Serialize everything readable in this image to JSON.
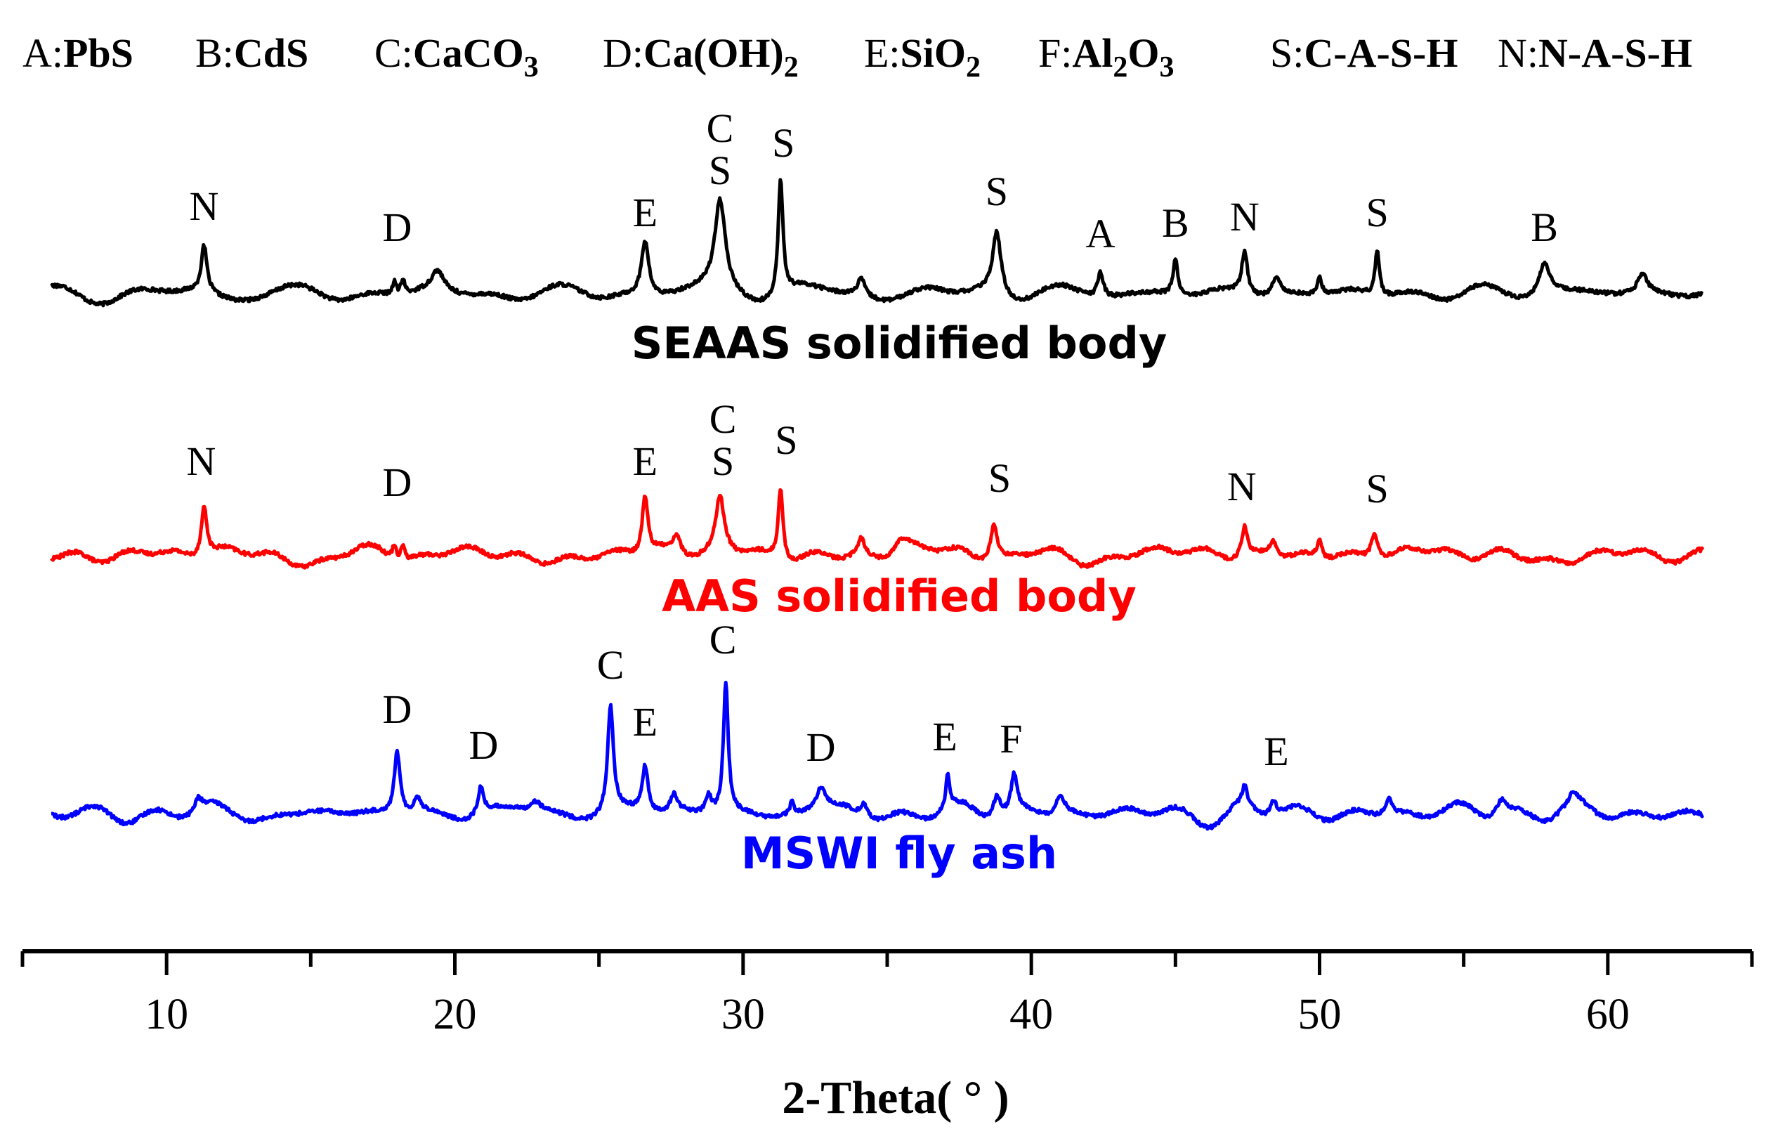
{
  "chart_data": {
    "type": "line",
    "title": "",
    "xlabel": "2-Theta( ° )",
    "ylabel": "",
    "xlim": [
      5.0,
      65.0
    ],
    "xticks_major": [
      10,
      20,
      30,
      40,
      50,
      60
    ],
    "xticks_minor": [
      5,
      15,
      25,
      35,
      45,
      55,
      65
    ],
    "legend": [
      {
        "key": "A",
        "phase": "PbS"
      },
      {
        "key": "B",
        "phase": "CdS"
      },
      {
        "key": "C",
        "phase": "CaCO3"
      },
      {
        "key": "D",
        "phase": "Ca(OH)2"
      },
      {
        "key": "E",
        "phase": "SiO2"
      },
      {
        "key": "F",
        "phase": "Al2O3"
      },
      {
        "key": "S",
        "phase": "C-A-S-H"
      },
      {
        "key": "N",
        "phase": "N-A-S-H"
      }
    ],
    "series": [
      {
        "name": "SEAAS solidified body",
        "color": "#000000",
        "offset": 2.0,
        "peaks": [
          {
            "x": 11.3,
            "h": 0.22,
            "w": 0.12
          },
          {
            "x": 17.9,
            "h": 0.06,
            "w": 0.08
          },
          {
            "x": 18.2,
            "h": 0.07,
            "w": 0.08
          },
          {
            "x": 19.4,
            "h": 0.09,
            "w": 0.25
          },
          {
            "x": 26.6,
            "h": 0.26,
            "w": 0.15
          },
          {
            "x": 29.2,
            "h": 0.42,
            "w": 0.22
          },
          {
            "x": 31.3,
            "h": 0.55,
            "w": 0.1
          },
          {
            "x": 34.1,
            "h": 0.08,
            "w": 0.15
          },
          {
            "x": 38.8,
            "h": 0.3,
            "w": 0.18
          },
          {
            "x": 42.4,
            "h": 0.12,
            "w": 0.12
          },
          {
            "x": 45.0,
            "h": 0.17,
            "w": 0.1
          },
          {
            "x": 47.4,
            "h": 0.2,
            "w": 0.12
          },
          {
            "x": 48.5,
            "h": 0.08,
            "w": 0.18
          },
          {
            "x": 50.0,
            "h": 0.08,
            "w": 0.1
          },
          {
            "x": 52.0,
            "h": 0.22,
            "w": 0.09
          },
          {
            "x": 57.8,
            "h": 0.15,
            "w": 0.25
          },
          {
            "x": 61.2,
            "h": 0.09,
            "w": 0.2
          }
        ],
        "labels": [
          {
            "text": "N",
            "x": 11.3,
            "above": 0.35
          },
          {
            "text": "D",
            "x": 18.0,
            "above": 0.25
          },
          {
            "text": "E",
            "x": 26.6,
            "above": 0.32
          },
          {
            "text": "S",
            "x": 29.2,
            "above": 0.52
          },
          {
            "text": "C",
            "x": 29.2,
            "above": 0.72
          },
          {
            "text": "S",
            "x": 31.4,
            "above": 0.65
          },
          {
            "text": "S",
            "x": 38.8,
            "above": 0.42
          },
          {
            "text": "A",
            "x": 42.4,
            "above": 0.22
          },
          {
            "text": "B",
            "x": 45.0,
            "above": 0.27
          },
          {
            "text": "N",
            "x": 47.4,
            "above": 0.3
          },
          {
            "text": "S",
            "x": 52.0,
            "above": 0.32
          },
          {
            "text": "B",
            "x": 57.8,
            "above": 0.25
          }
        ]
      },
      {
        "name": "AAS solidified body",
        "color": "#ff0000",
        "offset": 1.0,
        "peaks": [
          {
            "x": 11.3,
            "h": 0.24,
            "w": 0.12
          },
          {
            "x": 17.9,
            "h": 0.07,
            "w": 0.08
          },
          {
            "x": 18.2,
            "h": 0.08,
            "w": 0.08
          },
          {
            "x": 26.6,
            "h": 0.28,
            "w": 0.12
          },
          {
            "x": 27.7,
            "h": 0.08,
            "w": 0.15
          },
          {
            "x": 29.2,
            "h": 0.26,
            "w": 0.18
          },
          {
            "x": 31.3,
            "h": 0.35,
            "w": 0.1
          },
          {
            "x": 34.1,
            "h": 0.08,
            "w": 0.15
          },
          {
            "x": 35.5,
            "h": 0.06,
            "w": 0.3
          },
          {
            "x": 38.7,
            "h": 0.18,
            "w": 0.15
          },
          {
            "x": 47.4,
            "h": 0.14,
            "w": 0.12
          },
          {
            "x": 48.4,
            "h": 0.08,
            "w": 0.18
          },
          {
            "x": 50.0,
            "h": 0.08,
            "w": 0.1
          },
          {
            "x": 51.9,
            "h": 0.13,
            "w": 0.15
          }
        ],
        "labels": [
          {
            "text": "N",
            "x": 11.2,
            "above": 0.38
          },
          {
            "text": "D",
            "x": 18.0,
            "above": 0.28
          },
          {
            "text": "E",
            "x": 26.6,
            "above": 0.38
          },
          {
            "text": "S",
            "x": 29.3,
            "above": 0.38
          },
          {
            "text": "C",
            "x": 29.3,
            "above": 0.58
          },
          {
            "text": "S",
            "x": 31.5,
            "above": 0.48
          },
          {
            "text": "S",
            "x": 38.9,
            "above": 0.3
          },
          {
            "text": "N",
            "x": 47.3,
            "above": 0.26
          },
          {
            "text": "S",
            "x": 52.0,
            "above": 0.25
          }
        ]
      },
      {
        "name": "MSWI fly ash",
        "color": "#0000ff",
        "offset": 0.0,
        "peaks": [
          {
            "x": 11.1,
            "h": 0.06,
            "w": 0.15
          },
          {
            "x": 18.0,
            "h": 0.3,
            "w": 0.12
          },
          {
            "x": 18.7,
            "h": 0.07,
            "w": 0.15
          },
          {
            "x": 20.9,
            "h": 0.13,
            "w": 0.12
          },
          {
            "x": 22.8,
            "h": 0.05,
            "w": 0.25
          },
          {
            "x": 25.4,
            "h": 0.5,
            "w": 0.12
          },
          {
            "x": 26.6,
            "h": 0.22,
            "w": 0.12
          },
          {
            "x": 27.6,
            "h": 0.08,
            "w": 0.15
          },
          {
            "x": 28.8,
            "h": 0.09,
            "w": 0.12
          },
          {
            "x": 29.4,
            "h": 0.62,
            "w": 0.1
          },
          {
            "x": 31.7,
            "h": 0.06,
            "w": 0.08
          },
          {
            "x": 32.7,
            "h": 0.1,
            "w": 0.2
          },
          {
            "x": 34.2,
            "h": 0.07,
            "w": 0.15
          },
          {
            "x": 37.1,
            "h": 0.17,
            "w": 0.08
          },
          {
            "x": 38.8,
            "h": 0.11,
            "w": 0.15
          },
          {
            "x": 39.4,
            "h": 0.17,
            "w": 0.12
          },
          {
            "x": 41.0,
            "h": 0.1,
            "w": 0.2
          },
          {
            "x": 47.4,
            "h": 0.09,
            "w": 0.1
          },
          {
            "x": 48.4,
            "h": 0.08,
            "w": 0.15
          },
          {
            "x": 52.4,
            "h": 0.08,
            "w": 0.15
          },
          {
            "x": 56.3,
            "h": 0.09,
            "w": 0.25
          },
          {
            "x": 58.8,
            "h": 0.05,
            "w": 0.2
          }
        ],
        "labels": [
          {
            "text": "D",
            "x": 18.0,
            "above": 0.43
          },
          {
            "text": "D",
            "x": 21.0,
            "above": 0.26
          },
          {
            "text": "C",
            "x": 25.4,
            "above": 0.64
          },
          {
            "text": "E",
            "x": 26.6,
            "above": 0.37
          },
          {
            "text": "C",
            "x": 29.3,
            "above": 0.76
          },
          {
            "text": "D",
            "x": 32.7,
            "above": 0.25
          },
          {
            "text": "E",
            "x": 37.0,
            "above": 0.3
          },
          {
            "text": "F",
            "x": 39.3,
            "above": 0.29
          },
          {
            "text": "E",
            "x": 48.5,
            "above": 0.23
          }
        ]
      }
    ]
  }
}
